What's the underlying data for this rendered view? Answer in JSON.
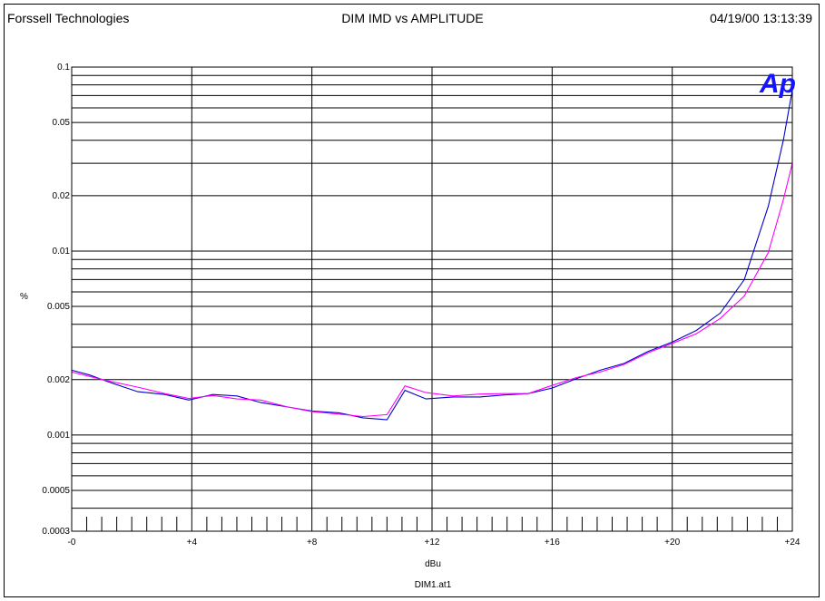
{
  "header": {
    "left": "Forssell Technologies",
    "center": "DIM IMD vs AMPLITUDE",
    "right": "04/19/00 13:13:39"
  },
  "logo": {
    "text": "Ap",
    "color": "#1414ff"
  },
  "chart_data": {
    "type": "line",
    "title": "DIM IMD vs AMPLITUDE",
    "xlabel": "dBu",
    "ylabel": "%",
    "footer": "DIM1.at1",
    "xlim": [
      0,
      24
    ],
    "ylim": [
      0.0003,
      0.1
    ],
    "yscale": "log",
    "grid": true,
    "x_ticks": [
      {
        "value": 0,
        "label": "-0"
      },
      {
        "value": 4,
        "label": "+4"
      },
      {
        "value": 8,
        "label": "+8"
      },
      {
        "value": 12,
        "label": "+12"
      },
      {
        "value": 16,
        "label": "+16"
      },
      {
        "value": 20,
        "label": "+20"
      },
      {
        "value": 24,
        "label": "+24"
      }
    ],
    "y_ticks": [
      {
        "value": 0.1,
        "label": "0.1"
      },
      {
        "value": 0.05,
        "label": "0.05"
      },
      {
        "value": 0.02,
        "label": "0.02"
      },
      {
        "value": 0.01,
        "label": "0.01"
      },
      {
        "value": 0.005,
        "label": "0.005"
      },
      {
        "value": 0.002,
        "label": "0.002"
      },
      {
        "value": 0.001,
        "label": "0.001"
      },
      {
        "value": 0.0005,
        "label": "0.0005"
      },
      {
        "value": 0.0003,
        "label": "0.0003"
      }
    ],
    "series": [
      {
        "color": "#0000cc",
        "x": [
          0,
          0.6,
          1.2,
          2.2,
          3.1,
          3.9,
          4.7,
          5.5,
          6.3,
          7.2,
          8.0,
          8.9,
          9.7,
          10.5,
          11.1,
          11.8,
          12.7,
          13.6,
          14.4,
          15.2,
          16.0,
          16.8,
          17.6,
          18.4,
          19.2,
          20.0,
          20.8,
          21.6,
          22.4,
          23.2,
          23.7,
          24.0
        ],
        "y": [
          0.00225,
          0.00212,
          0.00195,
          0.00172,
          0.00166,
          0.00155,
          0.00166,
          0.00163,
          0.0015,
          0.00142,
          0.00135,
          0.00132,
          0.00124,
          0.00121,
          0.00175,
          0.00157,
          0.00161,
          0.00161,
          0.00165,
          0.00168,
          0.0018,
          0.00202,
          0.00225,
          0.00245,
          0.00285,
          0.0032,
          0.0037,
          0.0046,
          0.007,
          0.0175,
          0.04,
          0.075
        ]
      },
      {
        "color": "#ff00ff",
        "x": [
          0,
          0.6,
          1.2,
          2.2,
          3.1,
          3.9,
          4.7,
          5.5,
          6.3,
          7.2,
          8.0,
          8.9,
          9.7,
          10.5,
          11.1,
          11.8,
          12.7,
          13.6,
          14.4,
          15.2,
          16.0,
          16.8,
          17.6,
          18.4,
          19.2,
          20.0,
          20.8,
          21.6,
          22.4,
          23.2,
          23.7,
          24.0
        ],
        "y": [
          0.0022,
          0.00208,
          0.00197,
          0.00182,
          0.00168,
          0.00158,
          0.00164,
          0.00157,
          0.00155,
          0.00142,
          0.00134,
          0.0013,
          0.00126,
          0.00129,
          0.00185,
          0.0017,
          0.00163,
          0.00167,
          0.00168,
          0.00168,
          0.00186,
          0.00205,
          0.0022,
          0.00242,
          0.0028,
          0.00315,
          0.00355,
          0.0043,
          0.0057,
          0.0098,
          0.019,
          0.03
        ]
      }
    ]
  }
}
